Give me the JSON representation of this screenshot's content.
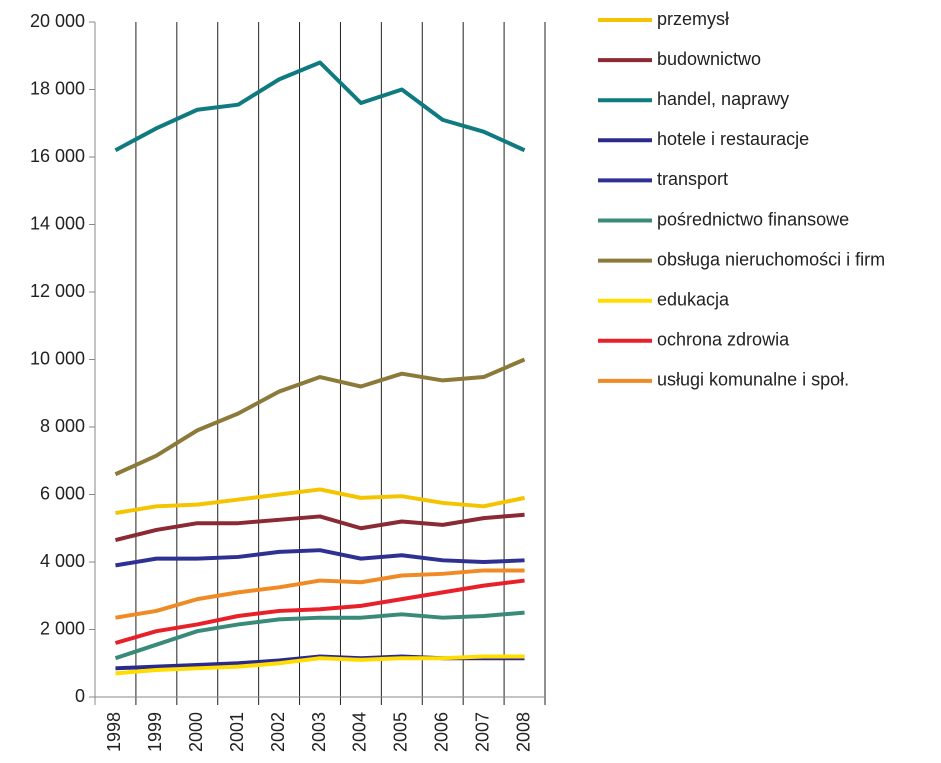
{
  "chart_data": {
    "type": "line",
    "categories": [
      "1998",
      "1999",
      "2000",
      "2001",
      "2002",
      "2003",
      "2004",
      "2005",
      "2006",
      "2007",
      "2008"
    ],
    "series": [
      {
        "name": "przemysł",
        "color": "#f5c400",
        "values": [
          5450,
          5650,
          5700,
          5850,
          6000,
          6150,
          5900,
          5950,
          5750,
          5650,
          5900
        ]
      },
      {
        "name": "budownictwo",
        "color": "#8b2a35",
        "values": [
          4650,
          4950,
          5150,
          5150,
          5250,
          5350,
          5000,
          5200,
          5100,
          5300,
          5400
        ]
      },
      {
        "name": "handel, naprawy",
        "color": "#0f7a7f",
        "values": [
          16200,
          16850,
          17400,
          17550,
          18300,
          18800,
          17600,
          18000,
          17100,
          16750,
          16200
        ]
      },
      {
        "name": "hotele i restauracje",
        "color": "#2b2a8c",
        "values": [
          850,
          900,
          950,
          1000,
          1080,
          1200,
          1150,
          1200,
          1150,
          1150,
          1150
        ]
      },
      {
        "name": "transport",
        "color": "#2e3192",
        "values": [
          3900,
          4100,
          4100,
          4150,
          4300,
          4350,
          4100,
          4200,
          4050,
          4000,
          4050
        ]
      },
      {
        "name": "pośrednictwo finansowe",
        "color": "#3a8a7a",
        "values": [
          1150,
          1550,
          1950,
          2150,
          2300,
          2350,
          2350,
          2450,
          2350,
          2400,
          2500
        ]
      },
      {
        "name": "obsługa nieruchomości i firm",
        "color": "#8c7a3a",
        "values": [
          6600,
          7150,
          7900,
          8400,
          9050,
          9480,
          9200,
          9580,
          9380,
          9480,
          10000
        ]
      },
      {
        "name": "edukacja",
        "color": "#ffdd00",
        "values": [
          700,
          800,
          850,
          900,
          1000,
          1150,
          1100,
          1150,
          1150,
          1200,
          1200
        ]
      },
      {
        "name": "ochrona zdrowia",
        "color": "#e8202a",
        "values": [
          1600,
          1950,
          2150,
          2400,
          2550,
          2600,
          2700,
          2900,
          3100,
          3300,
          3450
        ]
      },
      {
        "name": "usługi komunalne i społ.",
        "color": "#f08a24",
        "values": [
          2350,
          2550,
          2900,
          3100,
          3250,
          3450,
          3400,
          3600,
          3650,
          3750,
          3750
        ]
      }
    ],
    "ylim": [
      0,
      20000
    ],
    "yticks": [
      0,
      {
        "value": 2000,
        "label": "2 000"
      },
      {
        "value": 4000,
        "label": "4 000"
      },
      {
        "value": 6000,
        "label": "6 000"
      },
      {
        "value": 8000,
        "label": "8 000"
      },
      {
        "value": 10000,
        "label": "10 000"
      },
      {
        "value": 12000,
        "label": "12 000"
      },
      {
        "value": 14000,
        "label": "14 000"
      },
      {
        "value": 16000,
        "label": "16 000"
      },
      {
        "value": 18000,
        "label": "18 000"
      },
      {
        "value": 20000,
        "label": "20 000"
      }
    ],
    "legend": "right",
    "grid": true
  }
}
